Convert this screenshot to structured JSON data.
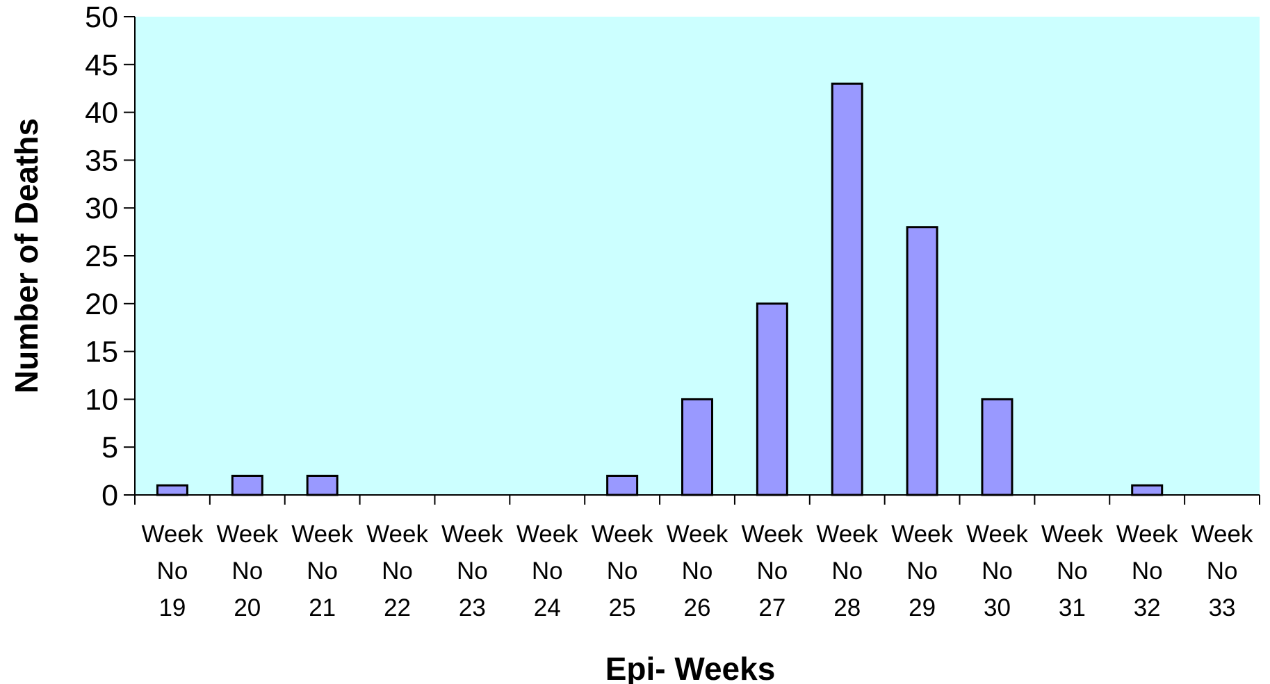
{
  "chart_data": {
    "type": "bar",
    "title": "",
    "xlabel": "Epi- Weeks",
    "ylabel": "Number of Deaths",
    "ylim": [
      0,
      50
    ],
    "yticks": [
      0,
      5,
      10,
      15,
      20,
      25,
      30,
      35,
      40,
      45,
      50
    ],
    "categories": [
      [
        "Week",
        "No",
        "19"
      ],
      [
        "Week",
        "No",
        "20"
      ],
      [
        "Week",
        "No",
        "21"
      ],
      [
        "Week",
        "No",
        "22"
      ],
      [
        "Week",
        "No",
        "23"
      ],
      [
        "Week",
        "No",
        "24"
      ],
      [
        "Week",
        "No",
        "25"
      ],
      [
        "Week",
        "No",
        "26"
      ],
      [
        "Week",
        "No",
        "27"
      ],
      [
        "Week",
        "No",
        "28"
      ],
      [
        "Week",
        "No",
        "29"
      ],
      [
        "Week",
        "No",
        "30"
      ],
      [
        "Week",
        "No",
        "31"
      ],
      [
        "Week",
        "No",
        "32"
      ],
      [
        "Week",
        "No",
        "33"
      ]
    ],
    "values": [
      1,
      2,
      2,
      0,
      0,
      0,
      2,
      10,
      20,
      43,
      28,
      10,
      0,
      1,
      0
    ],
    "grid": false,
    "legend": "none",
    "colors": {
      "plot_background": "#ccffff",
      "bar_fill": "#9999ff",
      "bar_stroke": "#000000"
    }
  }
}
